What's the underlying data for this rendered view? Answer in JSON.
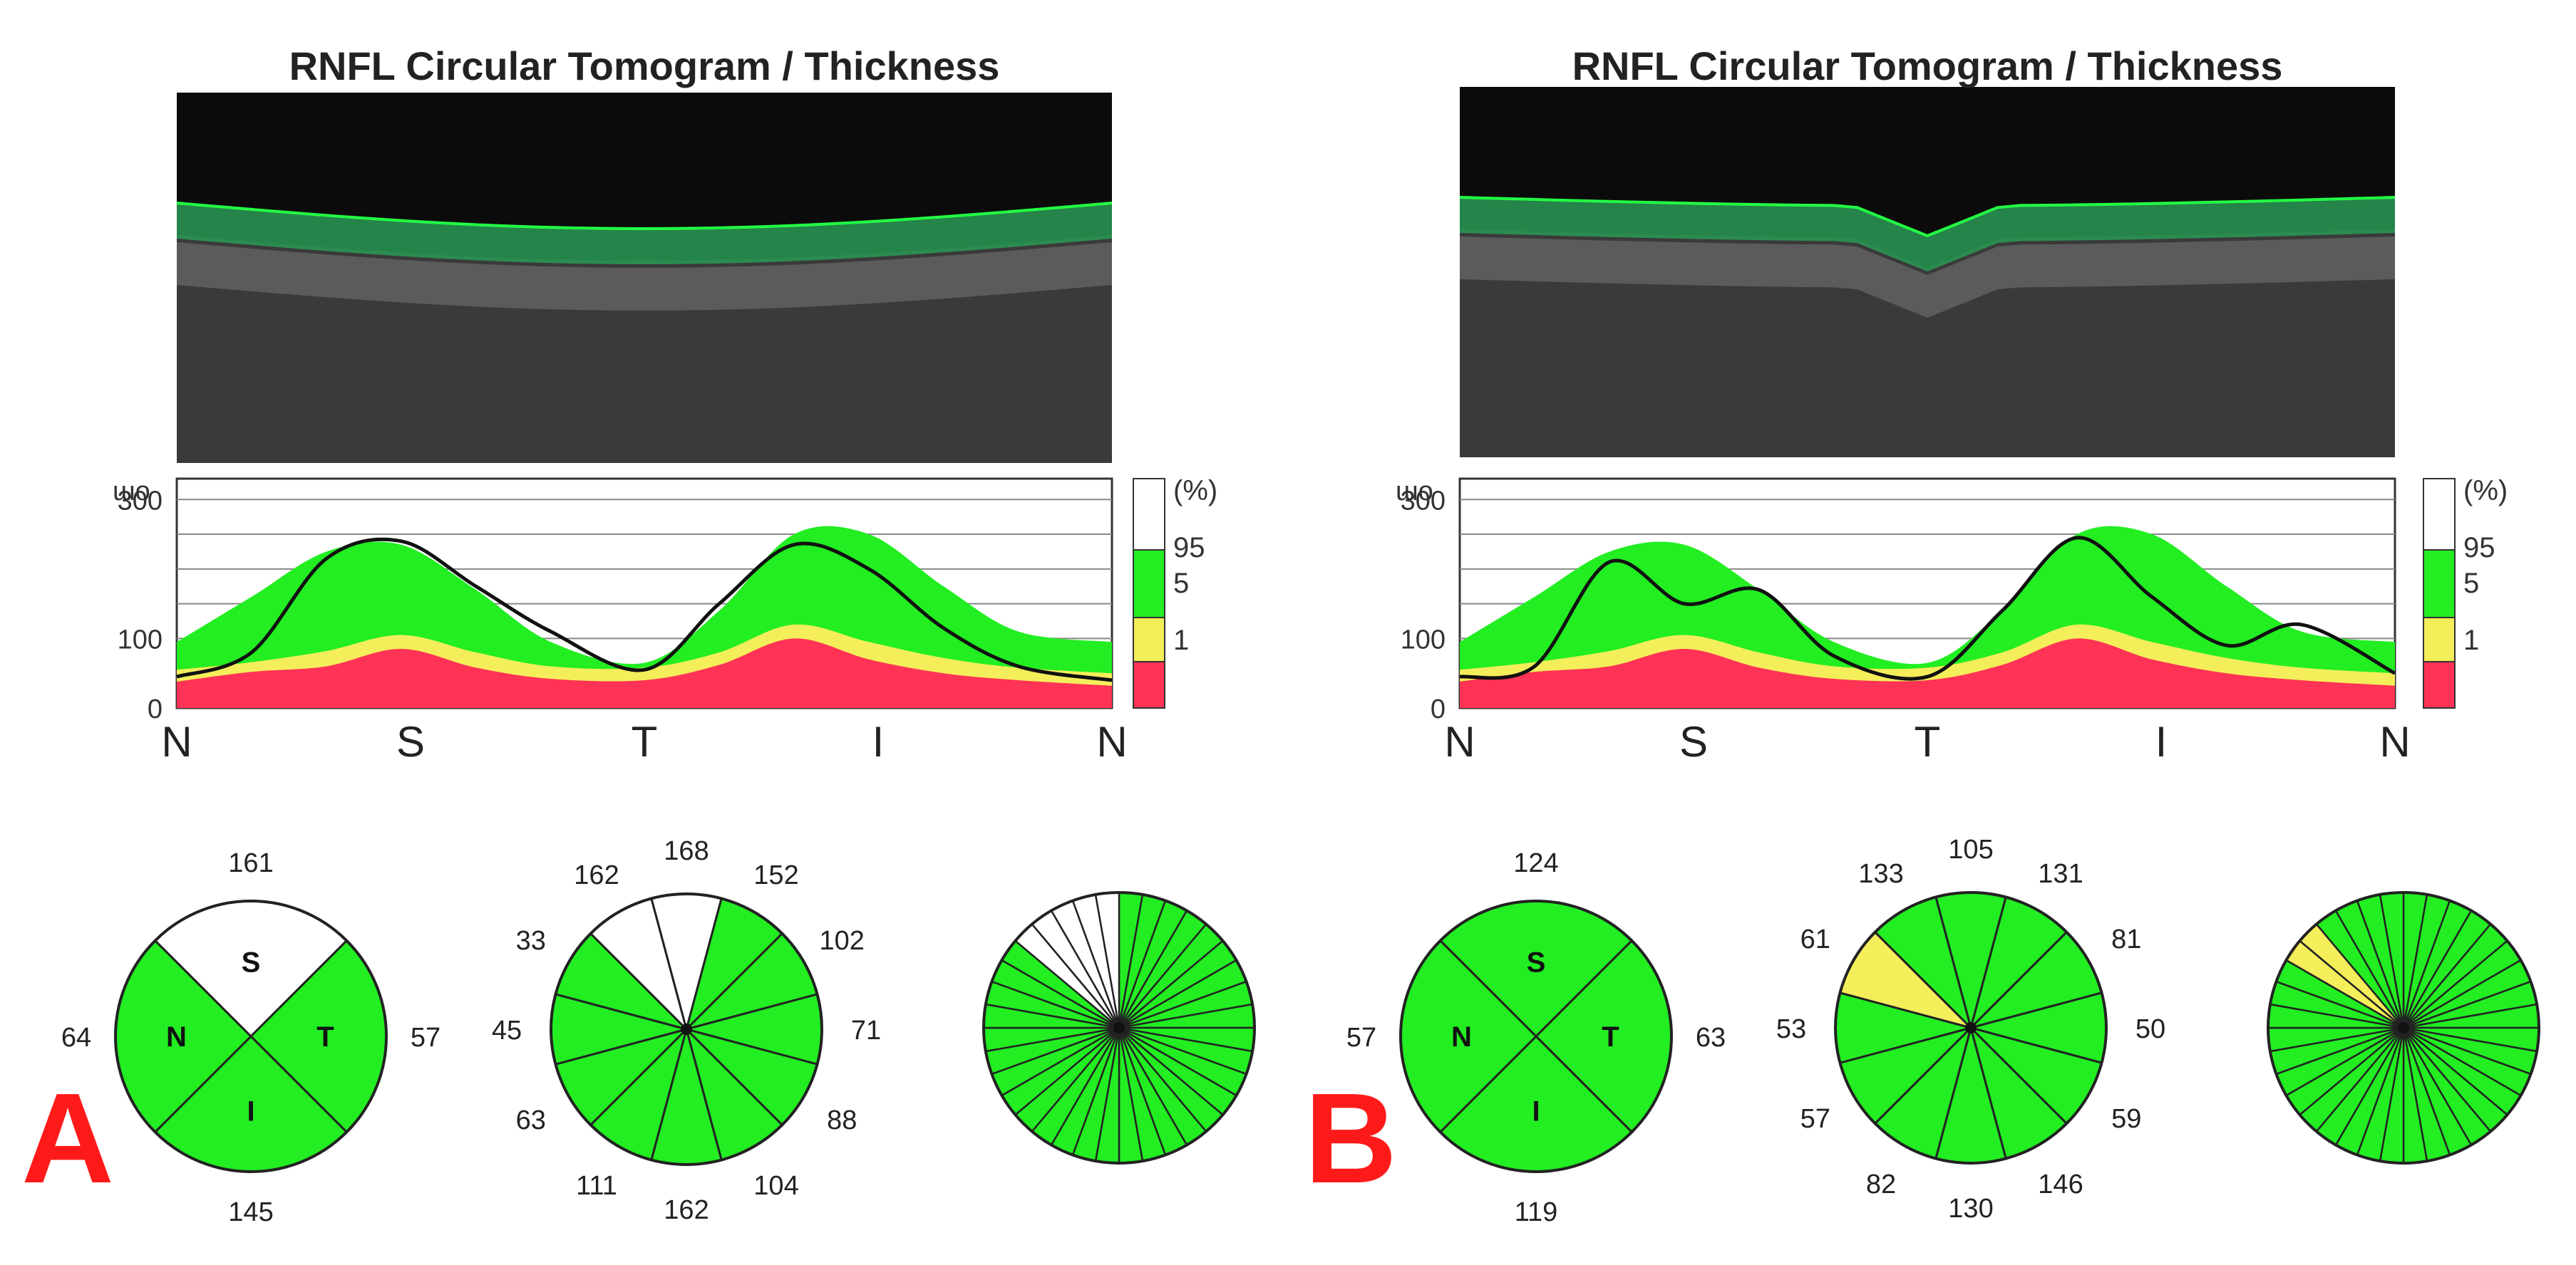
{
  "colors": {
    "red": "#ff3355",
    "yellow": "#f4ee5a",
    "green": "#22ee22",
    "white": "#ffffff",
    "curve": "#111111",
    "scan_bg": "#0b0b0b",
    "scan_green": "#2a9a55"
  },
  "chart_data": [
    {
      "panel": "A",
      "type": "area",
      "title": "RNFL Circular Tomogram / Thickness",
      "y_ticks": [
        "300",
        "100",
        "0"
      ],
      "y_top_label": "ɯo",
      "ylim": [
        0,
        330
      ],
      "x_labels": [
        "N",
        "S",
        "T",
        "I",
        "N"
      ],
      "legend": {
        "unit": "(%)",
        "labels": [
          "95",
          "5",
          "1"
        ]
      },
      "x": [
        0,
        8,
        16,
        24,
        32,
        40,
        50,
        58,
        66,
        74,
        82,
        90,
        100
      ],
      "band_1": [
        38,
        52,
        60,
        85,
        58,
        42,
        40,
        62,
        100,
        70,
        50,
        40,
        32
      ],
      "band_5": [
        55,
        66,
        82,
        105,
        80,
        60,
        58,
        80,
        120,
        95,
        72,
        58,
        50
      ],
      "band_95": [
        95,
        160,
        225,
        235,
        170,
        95,
        65,
        140,
        250,
        250,
        175,
        110,
        95
      ],
      "thickness": [
        45,
        80,
        215,
        240,
        175,
        110,
        55,
        150,
        235,
        200,
        115,
        60,
        40
      ],
      "sector_diagrams": [
        {
          "type": "quadrant",
          "letters": [
            "S",
            "T",
            "I",
            "N"
          ],
          "values": {
            "S": "161",
            "T": "57",
            "I": "145",
            "N": "64"
          },
          "classes": {
            "S": "white",
            "T": "green",
            "I": "green",
            "N": "green"
          }
        },
        {
          "type": "clock",
          "values": [
            "168",
            "152",
            "102",
            "71",
            "88",
            "104",
            "162",
            "111",
            "63",
            "45",
            "33",
            "162"
          ],
          "classes": [
            "white",
            "green",
            "green",
            "green",
            "green",
            "green",
            "green",
            "green",
            "green",
            "green",
            "green",
            "white"
          ]
        },
        {
          "type": "fine",
          "count": 36,
          "white_sectors": [
            31,
            32,
            33,
            34,
            35
          ]
        }
      ]
    },
    {
      "panel": "B",
      "type": "area",
      "title": "RNFL Circular Tomogram / Thickness",
      "y_ticks": [
        "300",
        "100",
        "0"
      ],
      "y_top_label": "ɯo",
      "ylim": [
        0,
        330
      ],
      "x_labels": [
        "N",
        "S",
        "T",
        "I",
        "N"
      ],
      "legend": {
        "unit": "(%)",
        "labels": [
          "95",
          "5",
          "1"
        ]
      },
      "x": [
        0,
        8,
        16,
        24,
        32,
        40,
        50,
        58,
        66,
        74,
        82,
        90,
        100
      ],
      "band_1": [
        38,
        52,
        60,
        85,
        58,
        42,
        40,
        62,
        100,
        70,
        50,
        40,
        32
      ],
      "band_5": [
        55,
        66,
        82,
        105,
        80,
        60,
        58,
        80,
        120,
        95,
        72,
        58,
        50
      ],
      "band_95": [
        95,
        160,
        225,
        235,
        170,
        95,
        65,
        140,
        250,
        250,
        175,
        110,
        95
      ],
      "thickness": [
        45,
        60,
        210,
        150,
        170,
        75,
        45,
        140,
        245,
        160,
        90,
        120,
        50
      ],
      "sector_diagrams": [
        {
          "type": "quadrant",
          "letters": [
            "S",
            "T",
            "I",
            "N"
          ],
          "values": {
            "S": "124",
            "T": "63",
            "I": "119",
            "N": "57"
          },
          "classes": {
            "S": "green",
            "T": "green",
            "I": "green",
            "N": "green"
          }
        },
        {
          "type": "clock",
          "values": [
            "105",
            "131",
            "81",
            "50",
            "59",
            "146",
            "130",
            "82",
            "57",
            "53",
            "61",
            "133"
          ],
          "classes": [
            "green",
            "green",
            "green",
            "green",
            "green",
            "green",
            "green",
            "green",
            "green",
            "green",
            "yellow",
            "green"
          ]
        },
        {
          "type": "fine",
          "count": 36,
          "yellow_sectors": [
            30,
            31
          ]
        }
      ]
    }
  ]
}
